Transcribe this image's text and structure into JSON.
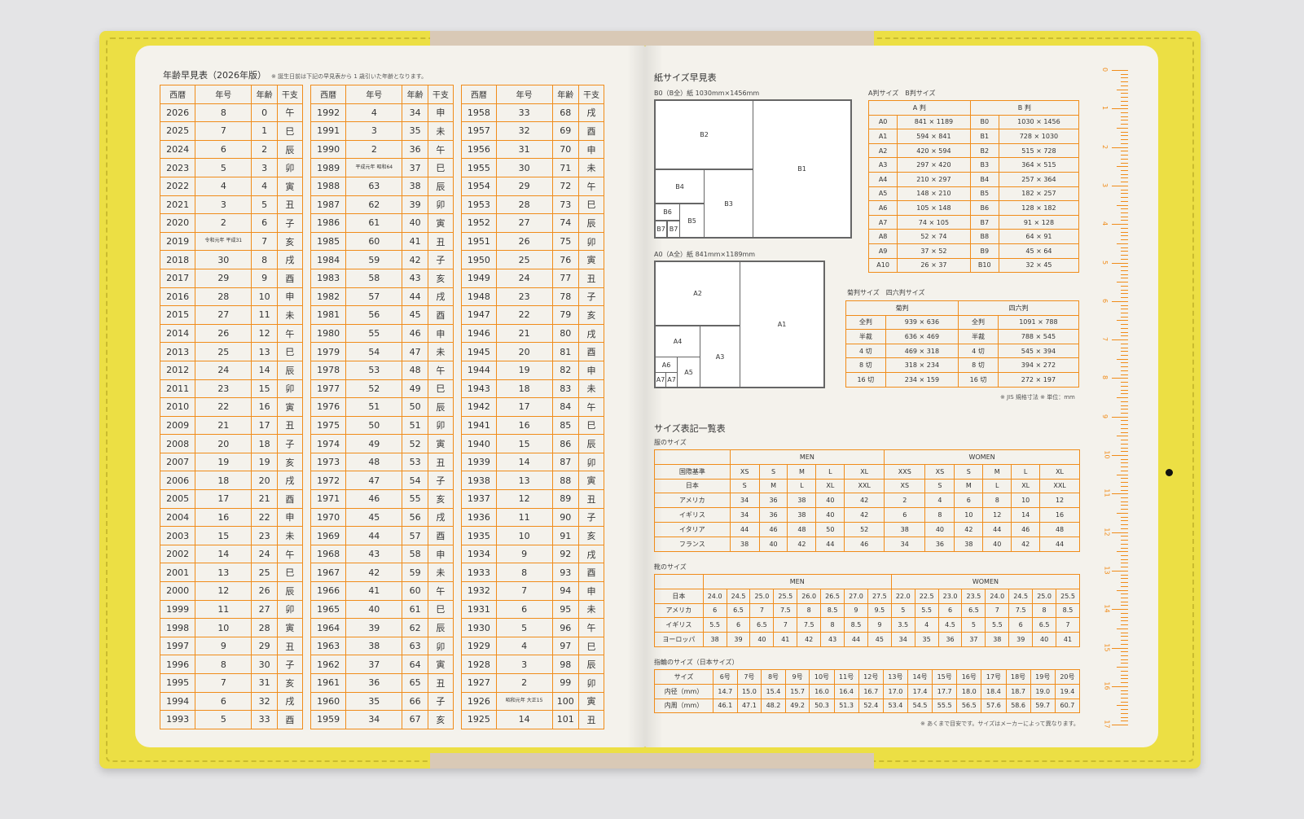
{
  "age_table": {
    "title": "年齢早見表（2026年版）",
    "note": "※ 誕生日前は下記の早見表から 1 歳引いた年齢となります。",
    "headers": [
      "西暦",
      "年号",
      "年齢",
      "干支"
    ],
    "columns": [
      [
        [
          "2026",
          "8",
          "0",
          "午"
        ],
        [
          "2025",
          "7",
          "1",
          "巳"
        ],
        [
          "2024",
          "6",
          "2",
          "辰"
        ],
        [
          "2023",
          "5",
          "3",
          "卯"
        ],
        [
          "2022",
          "4",
          "4",
          "寅"
        ],
        [
          "2021",
          "3",
          "5",
          "丑"
        ],
        [
          "2020",
          "2",
          "6",
          "子"
        ],
        [
          "2019",
          "令和元年 平成31",
          "7",
          "亥"
        ],
        [
          "2018",
          "30",
          "8",
          "戌"
        ],
        [
          "2017",
          "29",
          "9",
          "酉"
        ],
        [
          "2016",
          "28",
          "10",
          "申"
        ],
        [
          "2015",
          "27",
          "11",
          "未"
        ],
        [
          "2014",
          "26",
          "12",
          "午"
        ],
        [
          "2013",
          "25",
          "13",
          "巳"
        ],
        [
          "2012",
          "24",
          "14",
          "辰"
        ],
        [
          "2011",
          "23",
          "15",
          "卯"
        ],
        [
          "2010",
          "22",
          "16",
          "寅"
        ],
        [
          "2009",
          "21",
          "17",
          "丑"
        ],
        [
          "2008",
          "20",
          "18",
          "子"
        ],
        [
          "2007",
          "19",
          "19",
          "亥"
        ],
        [
          "2006",
          "18",
          "20",
          "戌"
        ],
        [
          "2005",
          "17",
          "21",
          "酉"
        ],
        [
          "2004",
          "16",
          "22",
          "申"
        ],
        [
          "2003",
          "15",
          "23",
          "未"
        ],
        [
          "2002",
          "14",
          "24",
          "午"
        ],
        [
          "2001",
          "13",
          "25",
          "巳"
        ],
        [
          "2000",
          "12",
          "26",
          "辰"
        ],
        [
          "1999",
          "11",
          "27",
          "卯"
        ],
        [
          "1998",
          "10",
          "28",
          "寅"
        ],
        [
          "1997",
          "9",
          "29",
          "丑"
        ],
        [
          "1996",
          "8",
          "30",
          "子"
        ],
        [
          "1995",
          "7",
          "31",
          "亥"
        ],
        [
          "1994",
          "6",
          "32",
          "戌"
        ],
        [
          "1993",
          "5",
          "33",
          "酉"
        ]
      ],
      [
        [
          "1992",
          "4",
          "34",
          "申"
        ],
        [
          "1991",
          "3",
          "35",
          "未"
        ],
        [
          "1990",
          "2",
          "36",
          "午"
        ],
        [
          "1989",
          "平成元年 昭和64",
          "37",
          "巳"
        ],
        [
          "1988",
          "63",
          "38",
          "辰"
        ],
        [
          "1987",
          "62",
          "39",
          "卯"
        ],
        [
          "1986",
          "61",
          "40",
          "寅"
        ],
        [
          "1985",
          "60",
          "41",
          "丑"
        ],
        [
          "1984",
          "59",
          "42",
          "子"
        ],
        [
          "1983",
          "58",
          "43",
          "亥"
        ],
        [
          "1982",
          "57",
          "44",
          "戌"
        ],
        [
          "1981",
          "56",
          "45",
          "酉"
        ],
        [
          "1980",
          "55",
          "46",
          "申"
        ],
        [
          "1979",
          "54",
          "47",
          "未"
        ],
        [
          "1978",
          "53",
          "48",
          "午"
        ],
        [
          "1977",
          "52",
          "49",
          "巳"
        ],
        [
          "1976",
          "51",
          "50",
          "辰"
        ],
        [
          "1975",
          "50",
          "51",
          "卯"
        ],
        [
          "1974",
          "49",
          "52",
          "寅"
        ],
        [
          "1973",
          "48",
          "53",
          "丑"
        ],
        [
          "1972",
          "47",
          "54",
          "子"
        ],
        [
          "1971",
          "46",
          "55",
          "亥"
        ],
        [
          "1970",
          "45",
          "56",
          "戌"
        ],
        [
          "1969",
          "44",
          "57",
          "酉"
        ],
        [
          "1968",
          "43",
          "58",
          "申"
        ],
        [
          "1967",
          "42",
          "59",
          "未"
        ],
        [
          "1966",
          "41",
          "60",
          "午"
        ],
        [
          "1965",
          "40",
          "61",
          "巳"
        ],
        [
          "1964",
          "39",
          "62",
          "辰"
        ],
        [
          "1963",
          "38",
          "63",
          "卯"
        ],
        [
          "1962",
          "37",
          "64",
          "寅"
        ],
        [
          "1961",
          "36",
          "65",
          "丑"
        ],
        [
          "1960",
          "35",
          "66",
          "子"
        ],
        [
          "1959",
          "34",
          "67",
          "亥"
        ]
      ],
      [
        [
          "1958",
          "33",
          "68",
          "戌"
        ],
        [
          "1957",
          "32",
          "69",
          "酉"
        ],
        [
          "1956",
          "31",
          "70",
          "申"
        ],
        [
          "1955",
          "30",
          "71",
          "未"
        ],
        [
          "1954",
          "29",
          "72",
          "午"
        ],
        [
          "1953",
          "28",
          "73",
          "巳"
        ],
        [
          "1952",
          "27",
          "74",
          "辰"
        ],
        [
          "1951",
          "26",
          "75",
          "卯"
        ],
        [
          "1950",
          "25",
          "76",
          "寅"
        ],
        [
          "1949",
          "24",
          "77",
          "丑"
        ],
        [
          "1948",
          "23",
          "78",
          "子"
        ],
        [
          "1947",
          "22",
          "79",
          "亥"
        ],
        [
          "1946",
          "21",
          "80",
          "戌"
        ],
        [
          "1945",
          "20",
          "81",
          "酉"
        ],
        [
          "1944",
          "19",
          "82",
          "申"
        ],
        [
          "1943",
          "18",
          "83",
          "未"
        ],
        [
          "1942",
          "17",
          "84",
          "午"
        ],
        [
          "1941",
          "16",
          "85",
          "巳"
        ],
        [
          "1940",
          "15",
          "86",
          "辰"
        ],
        [
          "1939",
          "14",
          "87",
          "卯"
        ],
        [
          "1938",
          "13",
          "88",
          "寅"
        ],
        [
          "1937",
          "12",
          "89",
          "丑"
        ],
        [
          "1936",
          "11",
          "90",
          "子"
        ],
        [
          "1935",
          "10",
          "91",
          "亥"
        ],
        [
          "1934",
          "9",
          "92",
          "戌"
        ],
        [
          "1933",
          "8",
          "93",
          "酉"
        ],
        [
          "1932",
          "7",
          "94",
          "申"
        ],
        [
          "1931",
          "6",
          "95",
          "未"
        ],
        [
          "1930",
          "5",
          "96",
          "午"
        ],
        [
          "1929",
          "4",
          "97",
          "巳"
        ],
        [
          "1928",
          "3",
          "98",
          "辰"
        ],
        [
          "1927",
          "2",
          "99",
          "卯"
        ],
        [
          "1926",
          "昭和元年 大正15",
          "100",
          "寅"
        ],
        [
          "1925",
          "14",
          "101",
          "丑"
        ]
      ]
    ]
  },
  "paper": {
    "title": "紙サイズ早見表",
    "b_label": "B0（B全）紙 1030mm×1456mm",
    "a_label": "A0（A全）紙 841mm×1189mm",
    "b_boxes": [
      "B1",
      "B2",
      "B3",
      "B4",
      "B5",
      "B6",
      "B7",
      "B7"
    ],
    "a_boxes": [
      "A1",
      "A2",
      "A3",
      "A4",
      "A5",
      "A6",
      "A7",
      "A7"
    ],
    "ab_title": "A判サイズ　B判サイズ",
    "ab_headers": [
      "A 判",
      "B 判"
    ],
    "ab_rows": [
      [
        "A0",
        "841 × 1189",
        "B0",
        "1030 × 1456"
      ],
      [
        "A1",
        "594 × 841",
        "B1",
        "728 × 1030"
      ],
      [
        "A2",
        "420 × 594",
        "B2",
        "515 × 728"
      ],
      [
        "A3",
        "297 × 420",
        "B3",
        "364 × 515"
      ],
      [
        "A4",
        "210 × 297",
        "B4",
        "257 × 364"
      ],
      [
        "A5",
        "148 × 210",
        "B5",
        "182 × 257"
      ],
      [
        "A6",
        "105 × 148",
        "B6",
        "128 × 182"
      ],
      [
        "A7",
        "74 × 105",
        "B7",
        "91 × 128"
      ],
      [
        "A8",
        "52 × 74",
        "B8",
        "64 × 91"
      ],
      [
        "A9",
        "37 × 52",
        "B9",
        "45 × 64"
      ],
      [
        "A10",
        "26 × 37",
        "B10",
        "32 × 45"
      ]
    ],
    "kiku_title": "菊判サイズ　四六判サイズ",
    "kiku_headers": [
      "菊判",
      "四六判"
    ],
    "kiku_rows": [
      [
        "全判",
        "939 × 636",
        "全判",
        "1091 × 788"
      ],
      [
        "半裁",
        "636 × 469",
        "半裁",
        "788 × 545"
      ],
      [
        "4 切",
        "469 × 318",
        "4 切",
        "545 × 394"
      ],
      [
        "8 切",
        "318 × 234",
        "8 切",
        "394 × 272"
      ],
      [
        "16 切",
        "234 × 159",
        "16 切",
        "272 × 197"
      ]
    ],
    "note": "※ JIS 規格寸法 ※ 単位：mm"
  },
  "sizes": {
    "title": "サイズ表記一覧表",
    "clothes_title": "服のサイズ",
    "men": "MEN",
    "women": "WOMEN",
    "clothes_rows": [
      [
        "国際基準",
        "XS",
        "S",
        "M",
        "L",
        "XL",
        "XXS",
        "XS",
        "S",
        "M",
        "L",
        "XL"
      ],
      [
        "日本",
        "S",
        "M",
        "L",
        "XL",
        "XXL",
        "XS",
        "S",
        "M",
        "L",
        "XL",
        "XXL"
      ],
      [
        "アメリカ",
        "34",
        "36",
        "38",
        "40",
        "42",
        "2",
        "4",
        "6",
        "8",
        "10",
        "12"
      ],
      [
        "イギリス",
        "34",
        "36",
        "38",
        "40",
        "42",
        "6",
        "8",
        "10",
        "12",
        "14",
        "16"
      ],
      [
        "イタリア",
        "44",
        "46",
        "48",
        "50",
        "52",
        "38",
        "40",
        "42",
        "44",
        "46",
        "48"
      ],
      [
        "フランス",
        "38",
        "40",
        "42",
        "44",
        "46",
        "34",
        "36",
        "38",
        "40",
        "42",
        "44"
      ]
    ],
    "shoes_title": "靴のサイズ",
    "shoes_rows": [
      [
        "日本",
        "24.0",
        "24.5",
        "25.0",
        "25.5",
        "26.0",
        "26.5",
        "27.0",
        "27.5",
        "22.0",
        "22.5",
        "23.0",
        "23.5",
        "24.0",
        "24.5",
        "25.0",
        "25.5"
      ],
      [
        "アメリカ",
        "6",
        "6.5",
        "7",
        "7.5",
        "8",
        "8.5",
        "9",
        "9.5",
        "5",
        "5.5",
        "6",
        "6.5",
        "7",
        "7.5",
        "8",
        "8.5"
      ],
      [
        "イギリス",
        "5.5",
        "6",
        "6.5",
        "7",
        "7.5",
        "8",
        "8.5",
        "9",
        "3.5",
        "4",
        "4.5",
        "5",
        "5.5",
        "6",
        "6.5",
        "7"
      ],
      [
        "ヨーロッパ",
        "38",
        "39",
        "40",
        "41",
        "42",
        "43",
        "44",
        "45",
        "34",
        "35",
        "36",
        "37",
        "38",
        "39",
        "40",
        "41"
      ]
    ],
    "ring_title": "指輪のサイズ（日本サイズ）",
    "ring_rows": [
      [
        "サイズ",
        "6号",
        "7号",
        "8号",
        "9号",
        "10号",
        "11号",
        "12号",
        "13号",
        "14号",
        "15号",
        "16号",
        "17号",
        "18号",
        "19号",
        "20号"
      ],
      [
        "内径（mm）",
        "14.7",
        "15.0",
        "15.4",
        "15.7",
        "16.0",
        "16.4",
        "16.7",
        "17.0",
        "17.4",
        "17.7",
        "18.0",
        "18.4",
        "18.7",
        "19.0",
        "19.4"
      ],
      [
        "内周（mm）",
        "46.1",
        "47.1",
        "48.2",
        "49.2",
        "50.3",
        "51.3",
        "52.4",
        "53.4",
        "54.5",
        "55.5",
        "56.5",
        "57.6",
        "58.6",
        "59.7",
        "60.7"
      ]
    ],
    "note": "※ あくまで目安です。サイズはメーカーによって異なります。"
  },
  "ruler_numbers": [
    "0",
    "1",
    "2",
    "3",
    "4",
    "5",
    "6",
    "7",
    "8",
    "9",
    "10",
    "11",
    "12",
    "13",
    "14",
    "15",
    "16",
    "17"
  ],
  "colors": {
    "accent": "#f08c1a",
    "cover": "#ecdf44",
    "paper": "#f4f2ec"
  }
}
